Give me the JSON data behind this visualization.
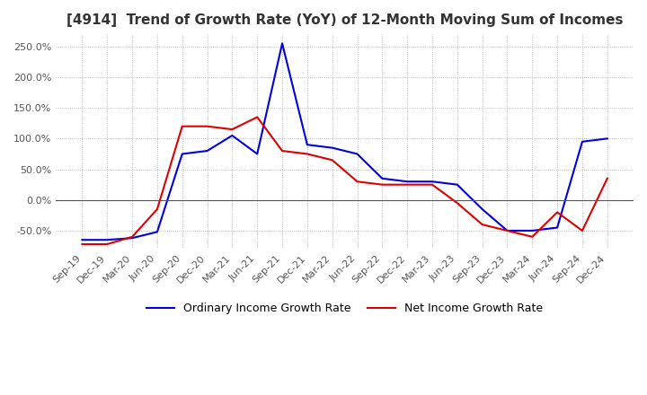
{
  "title": "[4914]  Trend of Growth Rate (YoY) of 12-Month Moving Sum of Incomes",
  "ylim": [
    -80,
    270
  ],
  "yticks": [
    -50,
    0,
    50,
    100,
    150,
    200,
    250
  ],
  "background_color": "#ffffff",
  "grid_color": "#aaaaaa",
  "ordinary_color": "#0000dd",
  "net_color": "#dd0000",
  "legend_ordinary": "Ordinary Income Growth Rate",
  "legend_net": "Net Income Growth Rate",
  "dates": [
    "Sep-19",
    "Dec-19",
    "Mar-20",
    "Jun-20",
    "Sep-20",
    "Dec-20",
    "Mar-21",
    "Jun-21",
    "Sep-21",
    "Dec-21",
    "Mar-22",
    "Jun-22",
    "Sep-22",
    "Dec-22",
    "Mar-23",
    "Jun-23",
    "Sep-23",
    "Dec-23",
    "Mar-24",
    "Jun-24",
    "Sep-24",
    "Dec-24"
  ],
  "ordinary_values": [
    -65,
    -65,
    -62,
    -52,
    75,
    80,
    105,
    75,
    255,
    90,
    85,
    75,
    35,
    30,
    30,
    25,
    -15,
    -50,
    -50,
    -45,
    95,
    100
  ],
  "net_values": [
    -72,
    -72,
    -60,
    -15,
    120,
    120,
    115,
    135,
    80,
    75,
    65,
    30,
    25,
    25,
    25,
    -5,
    -40,
    -50,
    -60,
    -20,
    -50,
    35
  ]
}
